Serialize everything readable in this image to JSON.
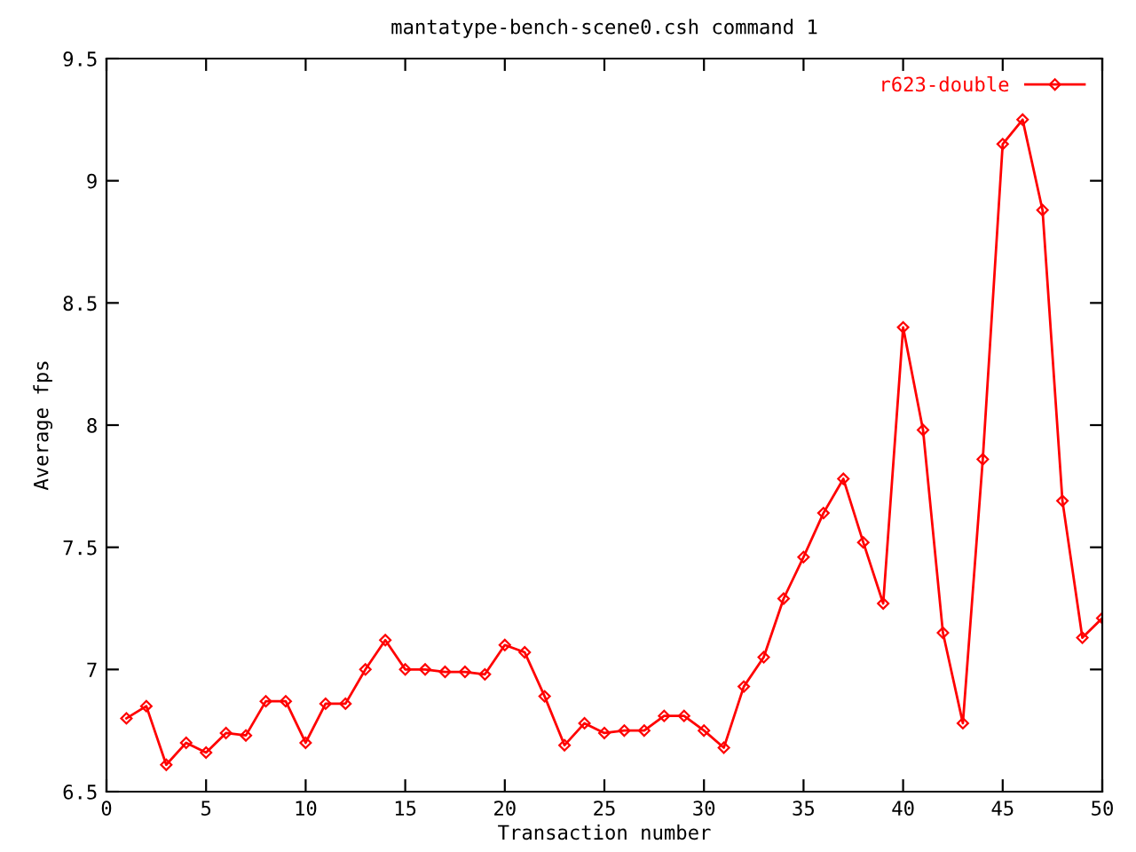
{
  "chart_data": {
    "type": "line",
    "title": "mantatype-bench-scene0.csh command 1",
    "xlabel": "Transaction number",
    "ylabel": "Average fps",
    "x": [
      1,
      2,
      3,
      4,
      5,
      6,
      7,
      8,
      9,
      10,
      11,
      12,
      13,
      14,
      15,
      16,
      17,
      18,
      19,
      20,
      21,
      22,
      23,
      24,
      25,
      26,
      27,
      28,
      29,
      30,
      31,
      32,
      33,
      34,
      35,
      36,
      37,
      38,
      39,
      40,
      41,
      42,
      43,
      44,
      45,
      46,
      47,
      48,
      49,
      50
    ],
    "series": [
      {
        "name": "r623-double",
        "color": "#ff0000",
        "values": [
          6.8,
          6.85,
          6.61,
          6.7,
          6.66,
          6.74,
          6.73,
          6.87,
          6.87,
          6.7,
          6.86,
          6.86,
          7.0,
          7.12,
          7.0,
          7.0,
          6.99,
          6.99,
          6.98,
          7.1,
          7.07,
          6.89,
          6.69,
          6.78,
          6.74,
          6.75,
          6.75,
          6.81,
          6.81,
          6.75,
          6.68,
          6.93,
          7.05,
          7.29,
          7.46,
          7.64,
          7.78,
          7.52,
          7.27,
          8.4,
          7.98,
          7.15,
          6.78,
          7.86,
          9.15,
          9.25,
          8.88,
          7.69,
          7.13,
          7.21
        ]
      }
    ],
    "xlim": [
      0,
      50
    ],
    "ylim": [
      6.5,
      9.5
    ],
    "xticks": [
      0,
      5,
      10,
      15,
      20,
      25,
      30,
      35,
      40,
      45,
      50
    ],
    "yticks": [
      6.5,
      7,
      7.5,
      8,
      8.5,
      9,
      9.5
    ],
    "marker": "diamond",
    "line_style": "solid",
    "legend": "top right",
    "grid": false
  }
}
